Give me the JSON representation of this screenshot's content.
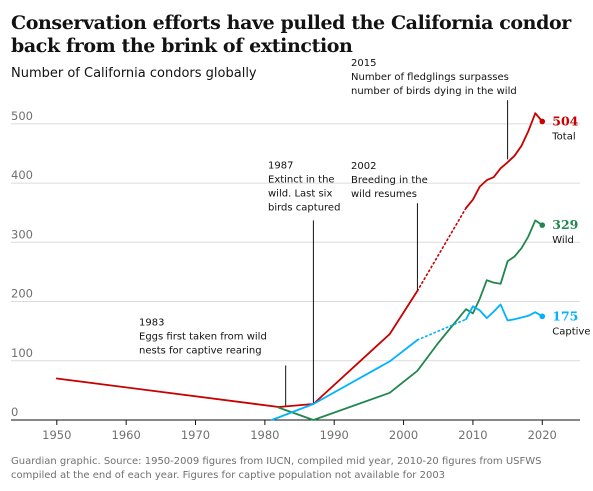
{
  "title": "Conservation efforts have pulled the California condor back from the brink of extinction",
  "subtitle": "Number of California condors globally",
  "source": "Guardian graphic. Source: 1950-2009 figures from IUCN, compiled mid year, 2010-20 figures from USFWS compiled at the end of each year. Figures for captive population not available for 2003",
  "colors": {
    "total": "#c70000",
    "wild": "#22874d",
    "captive": "#00b2ff",
    "grid": "#dcdcdc",
    "axis": "#121212",
    "tick": "#707070",
    "annotation": "#121212"
  },
  "chart_data": {
    "type": "line",
    "xlim": [
      1947,
      2024
    ],
    "ylim": [
      0,
      520
    ],
    "x_ticks": [
      1950,
      1960,
      1970,
      1980,
      1990,
      2000,
      2010,
      2020
    ],
    "y_ticks": [
      0,
      100,
      200,
      300,
      400,
      500
    ],
    "grid": "horizontal",
    "series": [
      {
        "key": "total",
        "name": "Total",
        "end_value": "504",
        "segments": [
          {
            "style": "solid",
            "points": [
              [
                1950,
                70
              ],
              [
                1982,
                22
              ],
              [
                1987,
                27
              ],
              [
                1998,
                145
              ],
              [
                2002,
                218
              ]
            ]
          },
          {
            "style": "dotted",
            "points": [
              [
                2002,
                218
              ],
              [
                2009,
                358
              ]
            ]
          },
          {
            "style": "solid",
            "points": [
              [
                2009,
                358
              ],
              [
                2010,
                372
              ],
              [
                2011,
                394
              ],
              [
                2012,
                405
              ],
              [
                2013,
                410
              ],
              [
                2014,
                425
              ],
              [
                2015,
                435
              ],
              [
                2016,
                446
              ],
              [
                2017,
                463
              ],
              [
                2018,
                488
              ],
              [
                2019,
                518
              ],
              [
                2020,
                504
              ]
            ]
          }
        ]
      },
      {
        "key": "wild",
        "name": "Wild",
        "end_value": "329",
        "segments": [
          {
            "style": "solid",
            "points": [
              [
                1982,
                21
              ],
              [
                1987,
                0
              ],
              [
                1998,
                46
              ],
              [
                2002,
                83
              ],
              [
                2005,
                130
              ],
              [
                2009,
                187
              ],
              [
                2010,
                180
              ],
              [
                2011,
                205
              ],
              [
                2012,
                236
              ],
              [
                2013,
                232
              ],
              [
                2014,
                230
              ],
              [
                2015,
                268
              ],
              [
                2016,
                276
              ],
              [
                2017,
                290
              ],
              [
                2018,
                310
              ],
              [
                2019,
                337
              ],
              [
                2020,
                329
              ]
            ]
          }
        ]
      },
      {
        "key": "captive",
        "name": "Captive",
        "end_value": "175",
        "segments": [
          {
            "style": "solid",
            "points": [
              [
                1981,
                0
              ],
              [
                1987,
                27
              ],
              [
                1998,
                99
              ],
              [
                2002,
                135
              ]
            ]
          },
          {
            "style": "dotted",
            "points": [
              [
                2002,
                135
              ],
              [
                2009,
                170
              ]
            ]
          },
          {
            "style": "solid",
            "points": [
              [
                2009,
                170
              ],
              [
                2010,
                192
              ],
              [
                2011,
                185
              ],
              [
                2012,
                172
              ],
              [
                2013,
                183
              ],
              [
                2014,
                195
              ],
              [
                2015,
                168
              ],
              [
                2016,
                170
              ],
              [
                2017,
                173
              ],
              [
                2018,
                176
              ],
              [
                2019,
                182
              ],
              [
                2020,
                175
              ]
            ]
          }
        ]
      }
    ],
    "annotations": [
      {
        "key": "a1983",
        "x": 1983,
        "lines": [
          "1983",
          "Eggs first taken from wild",
          "nests for captive rearing"
        ],
        "y_from": 22,
        "y_to": 92
      },
      {
        "key": "a1987",
        "x": 1987,
        "lines": [
          "1987",
          "Extinct in the",
          "wild. Last six",
          "birds captured"
        ],
        "y_from": 27,
        "y_to": 337
      },
      {
        "key": "a2002",
        "x": 2002,
        "lines": [
          "2002",
          "Breeding in the",
          "wild resumes"
        ],
        "y_from": 218,
        "y_to": 366
      },
      {
        "key": "a2015",
        "x": 2015,
        "lines": [
          "2015",
          "Number of fledglings surpasses",
          "number of birds dying in the wild"
        ],
        "y_from": 440,
        "y_to": 540
      }
    ]
  }
}
